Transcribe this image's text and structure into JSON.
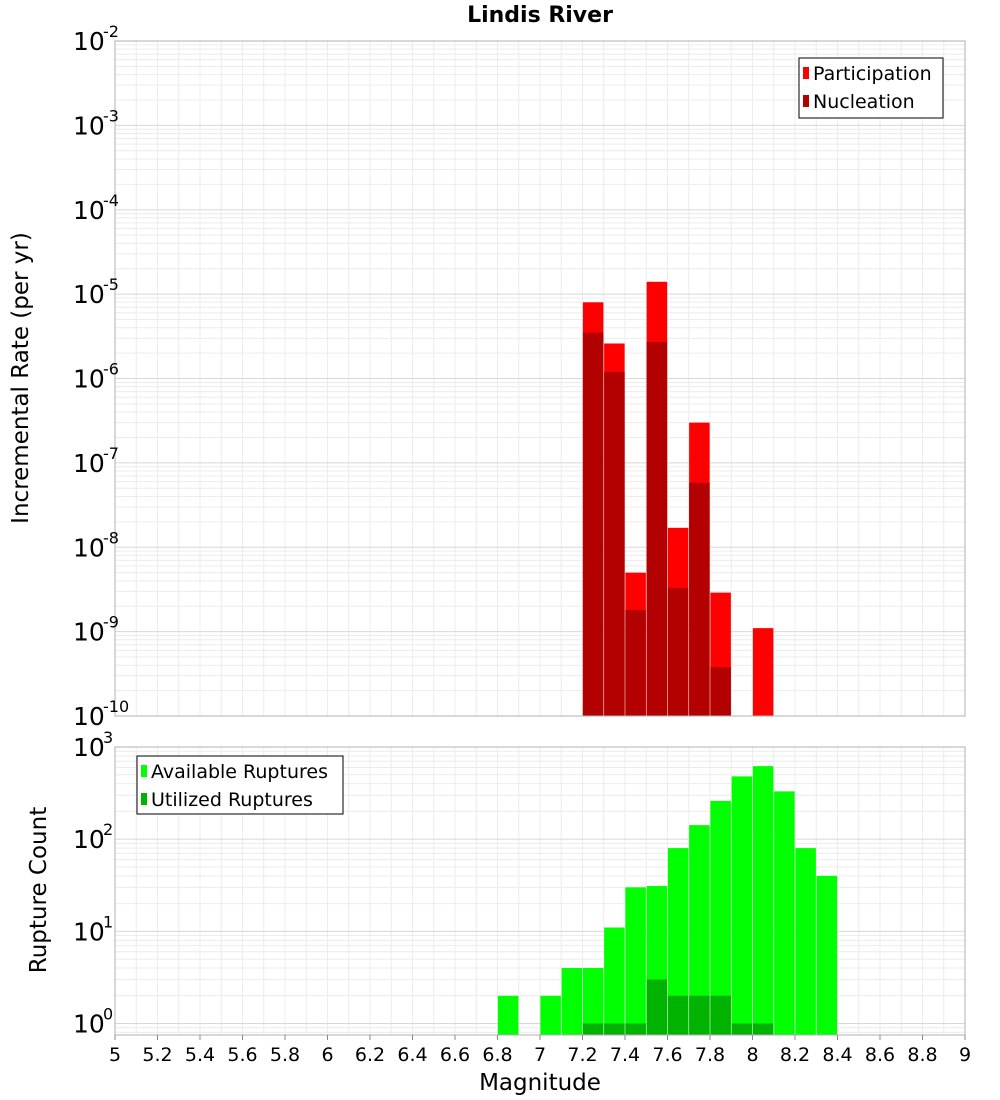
{
  "title": "Lindis River",
  "xlabel": "Magnitude",
  "x_ticks": [
    "5",
    "5.2",
    "5.4",
    "5.6",
    "5.8",
    "6",
    "6.2",
    "6.4",
    "6.6",
    "6.8",
    "7",
    "7.2",
    "7.4",
    "7.6",
    "7.8",
    "8",
    "8.2",
    "8.4",
    "8.6",
    "8.8",
    "9"
  ],
  "chart_data": [
    {
      "type": "bar",
      "ylabel": "Incremental Rate (per yr)",
      "yscale": "log",
      "xlim": [
        5,
        9
      ],
      "ylim": [
        1e-10,
        0.01
      ],
      "y_tick_exponents": [
        "-10",
        "-9",
        "-8",
        "-7",
        "-6",
        "-5",
        "-4",
        "-3",
        "-2"
      ],
      "legend_position": "top-right",
      "grid": true,
      "series": [
        {
          "name": "Participation",
          "color": "#ff0000",
          "x": [
            7.25,
            7.35,
            7.45,
            7.55,
            7.65,
            7.75,
            7.85,
            8.05
          ],
          "values": [
            8e-06,
            2.6e-06,
            5e-09,
            1.4e-05,
            1.7e-08,
            3e-07,
            2.9e-09,
            1.1e-09
          ]
        },
        {
          "name": "Nucleation",
          "color": "#b30000",
          "x": [
            7.25,
            7.35,
            7.45,
            7.55,
            7.65,
            7.75,
            7.85
          ],
          "values": [
            3.5e-06,
            1.2e-06,
            1.8e-09,
            2.7e-06,
            3.3e-09,
            5.8e-08,
            3.8e-10
          ]
        }
      ]
    },
    {
      "type": "bar",
      "ylabel": "Rupture Count",
      "yscale": "log",
      "xlim": [
        5,
        9
      ],
      "ylim": [
        0.75,
        1000
      ],
      "y_tick_exponents": [
        "0",
        "1",
        "2",
        "3"
      ],
      "legend_position": "top-left",
      "grid": true,
      "series": [
        {
          "name": "Available Ruptures",
          "color": "#00ff00",
          "x": [
            6.85,
            7.05,
            7.15,
            7.25,
            7.35,
            7.45,
            7.55,
            7.65,
            7.75,
            7.85,
            7.95,
            8.05,
            8.15,
            8.25,
            8.35
          ],
          "values": [
            2,
            2,
            4,
            4,
            11,
            30,
            31,
            80,
            142,
            260,
            480,
            620,
            330,
            80,
            40
          ]
        },
        {
          "name": "Utilized Ruptures",
          "color": "#00b300",
          "x": [
            7.25,
            7.35,
            7.45,
            7.55,
            7.65,
            7.75,
            7.85,
            7.95,
            8.05
          ],
          "values": [
            1,
            1,
            1,
            3,
            2,
            2,
            2,
            1,
            1
          ]
        }
      ]
    }
  ]
}
